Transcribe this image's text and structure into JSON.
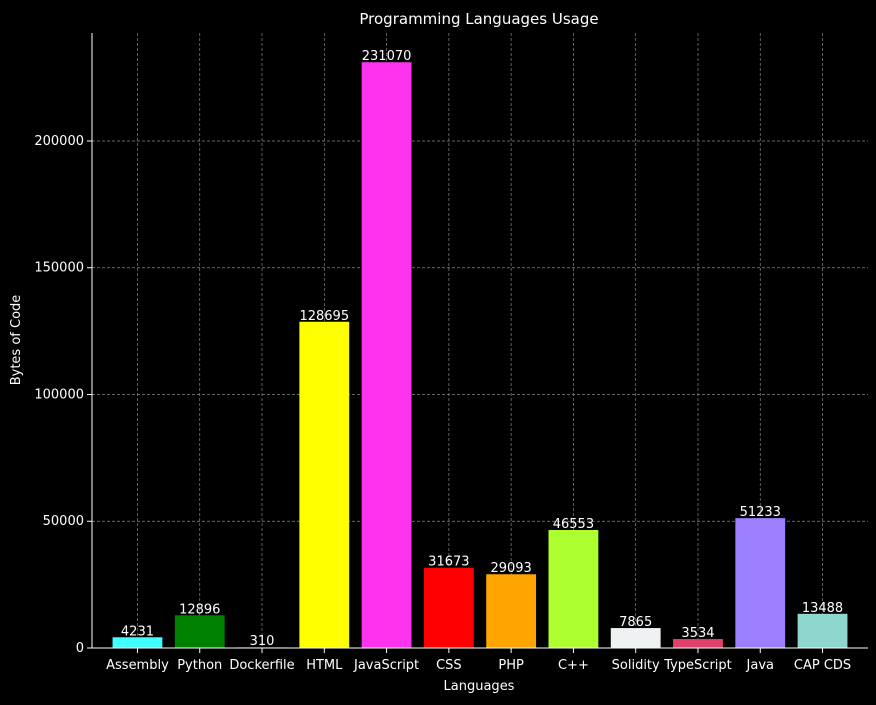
{
  "chart_data": {
    "type": "bar",
    "title": "Programming Languages Usage",
    "xlabel": "Languages",
    "ylabel": "Bytes of Code",
    "ylim": [
      0,
      242600
    ],
    "yticks": [
      0,
      50000,
      100000,
      150000,
      200000
    ],
    "grid": true,
    "categories": [
      "Assembly",
      "Python",
      "Dockerfile",
      "HTML",
      "JavaScript",
      "CSS",
      "PHP",
      "C++",
      "Solidity",
      "TypeScript",
      "Java",
      "CAP CDS"
    ],
    "values": [
      4231,
      12896,
      310,
      128695,
      231070,
      31673,
      29093,
      46553,
      7865,
      3534,
      51233,
      13488
    ],
    "colors": [
      "#40ffff",
      "#008000",
      "#2020a0",
      "#ffff00",
      "#ff33ee",
      "#ff0000",
      "#ffa500",
      "#adff2f",
      "#eef2f2",
      "#e0406a",
      "#9b7fff",
      "#8ed6ce"
    ]
  },
  "theme": {
    "background": "#000000",
    "text": "#ffffff",
    "grid": "#888888"
  }
}
